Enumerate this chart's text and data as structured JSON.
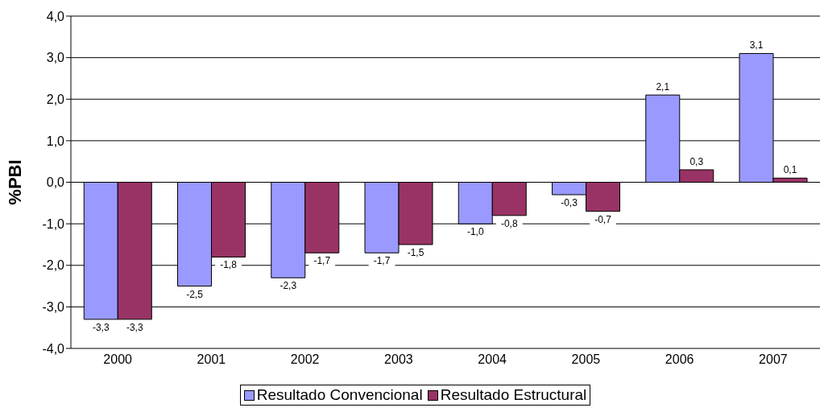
{
  "chart_data": {
    "type": "bar",
    "ylabel": "%PBI",
    "categories": [
      "2000",
      "2001",
      "2002",
      "2003",
      "2004",
      "2005",
      "2006",
      "2007"
    ],
    "series": [
      {
        "name": "Resultado Convencional",
        "color": "#9999ff",
        "values": [
          -3.3,
          -2.5,
          -2.3,
          -1.7,
          -1.0,
          -0.3,
          2.1,
          3.1
        ],
        "value_labels": [
          "-3,3",
          "-2,5",
          "-2,3",
          "-1,7",
          "-1,0",
          "-0,3",
          "2,1",
          "3,1"
        ]
      },
      {
        "name": "Resultado Estructural",
        "color": "#993366",
        "values": [
          -3.3,
          -1.8,
          -1.7,
          -1.5,
          -0.8,
          -0.7,
          0.3,
          0.1
        ],
        "value_labels": [
          "-3,3",
          "-1,8",
          "-1,7",
          "-1,5",
          "-0,8",
          "-0,7",
          "0,3",
          "0,1"
        ]
      }
    ],
    "ylim": [
      -4,
      4
    ],
    "yticks": [
      {
        "value": -4,
        "label": "-4,0"
      },
      {
        "value": -3,
        "label": "-3,0"
      },
      {
        "value": -2,
        "label": "-2,0"
      },
      {
        "value": -1,
        "label": "-1,0"
      },
      {
        "value": 0,
        "label": "0,0"
      },
      {
        "value": 1,
        "label": "1,0"
      },
      {
        "value": 2,
        "label": "2,0"
      },
      {
        "value": 3,
        "label": "3,0"
      },
      {
        "value": 4,
        "label": "4,0"
      }
    ],
    "grid": "y",
    "legend": "bottom"
  }
}
